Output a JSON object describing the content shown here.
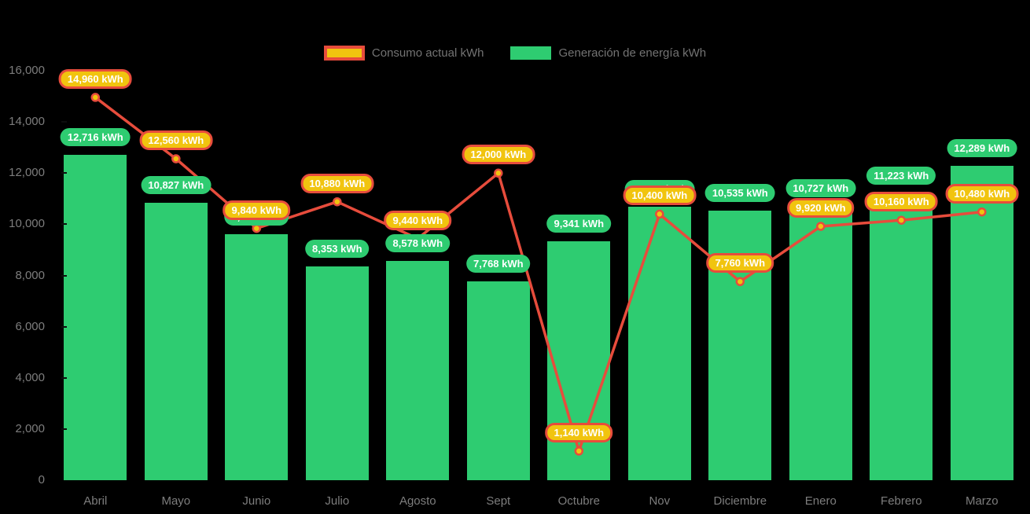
{
  "colors": {
    "background": "#000000",
    "bar": "#2ecc71",
    "line": "#e74c3c",
    "point_fill": "#f1c40f",
    "point_ring": "#e74c3c",
    "bar_label_bg": "#2ecc71",
    "bar_label_text": "#ffffff",
    "line_label_bg": "#f1c40f",
    "line_label_border": "#e74c3c",
    "line_label_text": "#ffffff",
    "axis_text": "#7d7d7d",
    "legend_text": "#737373"
  },
  "legend": {
    "position": "top-center",
    "items": [
      {
        "label": "Consumo actual kWh",
        "series_type": "line",
        "swatch_fill": "#f1c40f",
        "swatch_border": "#e74c3c"
      },
      {
        "label": "Generación de energía kWh",
        "series_type": "bar",
        "swatch_fill": "#2ecc71",
        "swatch_border": "#2ecc71"
      }
    ]
  },
  "chart_data": {
    "type": "combo-bar-line",
    "title": "",
    "xlabel": "",
    "ylabel": "",
    "categories": [
      "Abril",
      "Mayo",
      "Junio",
      "Julio",
      "Agosto",
      "Sept",
      "Octubre",
      "Nov",
      "Diciembre",
      "Enero",
      "Febrero",
      "Marzo"
    ],
    "series": [
      {
        "name": "Consumo actual kWh",
        "type": "line",
        "color": "#e74c3c",
        "values": [
          14960,
          12560,
          9840,
          10880,
          9440,
          12000,
          1140,
          10400,
          7760,
          9920,
          10160,
          10480
        ],
        "data_labels": [
          "14,960 kWh",
          "12,560 kWh",
          "9,840 kWh",
          "10,880 kWh",
          "9,440 kWh",
          "12,000 kWh",
          "1,140 kWh",
          "10,400 kWh",
          "7,760 kWh",
          "9,920 kWh",
          "10,160 kWh",
          "10,480 kWh"
        ]
      },
      {
        "name": "Generación de energía kWh",
        "type": "bar",
        "color": "#2ecc71",
        "values": [
          12716,
          10827,
          9603,
          8353,
          8578,
          7768,
          9341,
          10691,
          10535,
          10727,
          11223,
          12289
        ],
        "data_labels": [
          "12,716 kWh",
          "10,827 kWh",
          "9,603 kWh",
          "8,353 kWh",
          "8,578 kWh",
          "7,768 kWh",
          "9,341 kWh",
          "10,691 kWh",
          "10,535 kWh",
          "10,727 kWh",
          "11,223 kWh",
          "12,289 kWh"
        ]
      }
    ],
    "data_label_suffix": " kWh",
    "ylim": [
      0,
      16000
    ],
    "y_ticks": [
      0,
      2000,
      4000,
      6000,
      8000,
      10000,
      12000,
      14000,
      16000
    ],
    "y_tick_labels": [
      "0",
      "2,000",
      "4,000",
      "6,000",
      "8,000",
      "10,000",
      "12,000",
      "14,000",
      "16,000"
    ],
    "grid": false,
    "legend_position": "top",
    "data_labels_visible": true
  }
}
